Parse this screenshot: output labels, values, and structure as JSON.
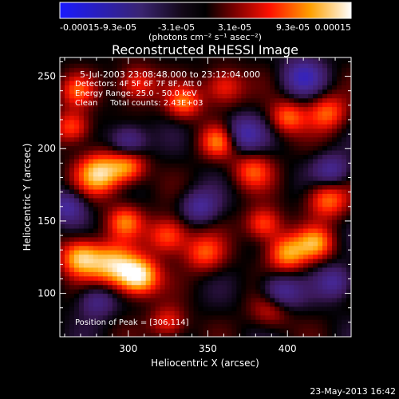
{
  "chart_data": {
    "type": "heatmap",
    "title": "Reconstructed RHESSI Image",
    "xlabel": "Heliocentric X (arcsec)",
    "ylabel": "Heliocentric Y (arcsec)",
    "xlim": [
      257,
      440
    ],
    "ylim": [
      70,
      263
    ],
    "x_ticks": [
      300,
      350,
      400
    ],
    "y_ticks": [
      100,
      150,
      200,
      250
    ],
    "colorbar": {
      "unit_label": "(photons cm⁻² s⁻¹ asec⁻²)",
      "tick_labels": [
        "-0.00015",
        "-9.3e-05",
        "-3.1e-05",
        "3.1e-05",
        "9.3e-05",
        "0.00015"
      ],
      "min": -0.00015,
      "max": 0.00015
    },
    "annotations": [
      "5-Jul-2003 23:08:48.000 to 23:12:04.000",
      "Detectors: 4F 5F 6F 7F 8F, Att 0",
      "Energy Range: 25.0 - 50.0 keV",
      "Clean     Total counts: 2.43E+03"
    ],
    "peak_label": "Position of Peak = [306,114]",
    "peak_position": [
      306,
      114
    ],
    "sources": [
      {
        "x": 306,
        "y": 112,
        "amp": 1.0,
        "sigma": 9
      },
      {
        "x": 290,
        "y": 120,
        "amp": 0.75,
        "sigma": 10
      },
      {
        "x": 270,
        "y": 125,
        "amp": 0.8,
        "sigma": 9
      },
      {
        "x": 282,
        "y": 183,
        "amp": 0.85,
        "sigma": 10
      },
      {
        "x": 300,
        "y": 188,
        "amp": 0.6,
        "sigma": 8
      },
      {
        "x": 298,
        "y": 150,
        "amp": 0.55,
        "sigma": 8
      },
      {
        "x": 325,
        "y": 140,
        "amp": 0.6,
        "sigma": 9
      },
      {
        "x": 348,
        "y": 128,
        "amp": 0.5,
        "sigma": 9
      },
      {
        "x": 400,
        "y": 128,
        "amp": 0.7,
        "sigma": 9
      },
      {
        "x": 418,
        "y": 135,
        "amp": 0.6,
        "sigma": 8
      },
      {
        "x": 385,
        "y": 148,
        "amp": 0.55,
        "sigma": 8
      },
      {
        "x": 425,
        "y": 165,
        "amp": 0.6,
        "sigma": 9
      },
      {
        "x": 378,
        "y": 185,
        "amp": 0.5,
        "sigma": 9
      },
      {
        "x": 357,
        "y": 205,
        "amp": 0.6,
        "sigma": 8
      },
      {
        "x": 400,
        "y": 222,
        "amp": 0.55,
        "sigma": 8
      },
      {
        "x": 425,
        "y": 225,
        "amp": 0.55,
        "sigma": 9
      },
      {
        "x": 360,
        "y": 243,
        "amp": 0.5,
        "sigma": 9
      },
      {
        "x": 335,
        "y": 232,
        "amp": 0.55,
        "sigma": 8
      },
      {
        "x": 305,
        "y": 245,
        "amp": 0.5,
        "sigma": 9
      },
      {
        "x": 265,
        "y": 215,
        "amp": 0.55,
        "sigma": 8
      },
      {
        "x": 268,
        "y": 240,
        "amp": 0.45,
        "sigma": 8
      },
      {
        "x": 325,
        "y": 80,
        "amp": 0.45,
        "sigma": 8
      },
      {
        "x": 390,
        "y": 90,
        "amp": 0.45,
        "sigma": 9
      },
      {
        "x": 372,
        "y": 210,
        "amp": -0.55,
        "sigma": 9
      },
      {
        "x": 300,
        "y": 205,
        "amp": -0.5,
        "sigma": 8
      },
      {
        "x": 395,
        "y": 100,
        "amp": -0.6,
        "sigma": 9
      },
      {
        "x": 410,
        "y": 250,
        "amp": -0.55,
        "sigma": 9
      },
      {
        "x": 345,
        "y": 160,
        "amp": -0.45,
        "sigma": 8
      },
      {
        "x": 262,
        "y": 160,
        "amp": -0.5,
        "sigma": 8
      },
      {
        "x": 428,
        "y": 185,
        "amp": -0.45,
        "sigma": 8
      },
      {
        "x": 280,
        "y": 95,
        "amp": -0.4,
        "sigma": 8
      },
      {
        "x": 430,
        "y": 108,
        "amp": -0.45,
        "sigma": 8
      }
    ]
  },
  "footer_date": "23-May-2013 16:42"
}
